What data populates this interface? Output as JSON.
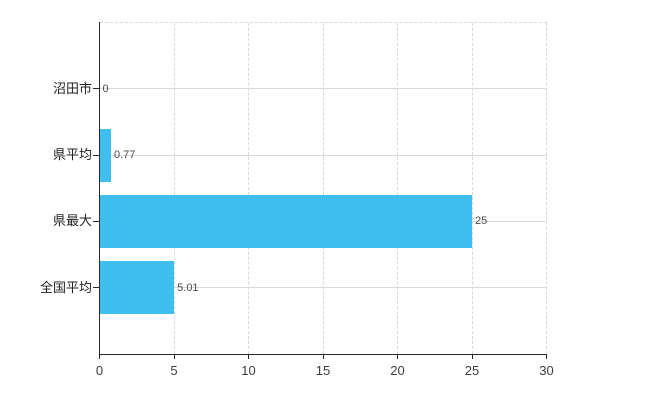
{
  "chart_data": {
    "type": "bar",
    "orientation": "horizontal",
    "title": "",
    "xlabel": "",
    "ylabel": "",
    "categories": [
      "沼田市",
      "県平均",
      "県最大",
      "全国平均"
    ],
    "values": [
      0,
      0.77,
      25,
      5.01
    ],
    "value_labels": [
      "0",
      "0.77",
      "25",
      "5.01"
    ],
    "xlim": [
      0,
      30
    ],
    "x_ticks": [
      0,
      5,
      10,
      15,
      20,
      25,
      30
    ],
    "x_tick_labels": [
      "0",
      "5",
      "10",
      "15",
      "20",
      "25",
      "30"
    ],
    "legend": "none",
    "grid": {
      "vertical": "dashed",
      "horizontal": "solid"
    },
    "colors": {
      "bar": "#3fbfef",
      "axis": "#2a2a2a",
      "grid_dashed": "#d7d7d7",
      "grid_solid": "#d5dcd5",
      "category_text": "#1f1f1f",
      "tick_text": "#3d3d3d",
      "value_text": "#4a4a4a",
      "background": "#ffffff"
    }
  }
}
